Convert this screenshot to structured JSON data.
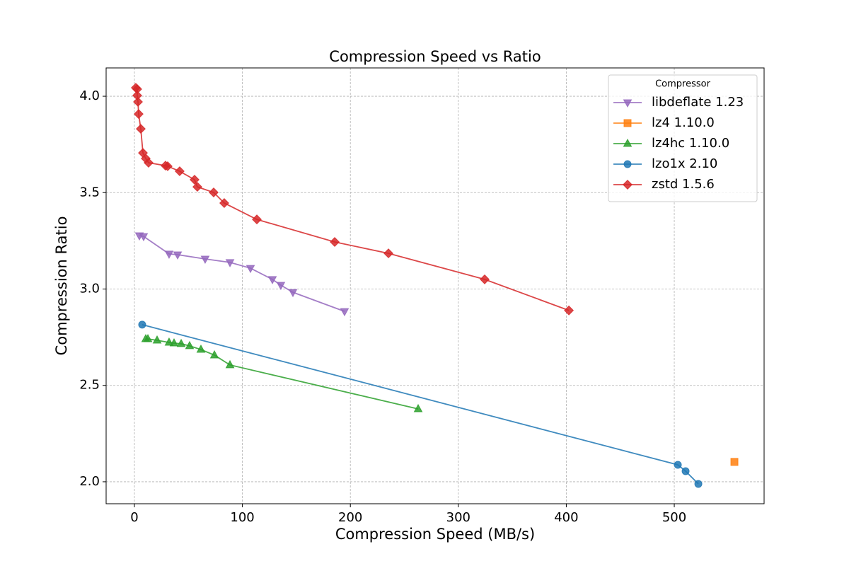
{
  "chart_data": {
    "type": "line",
    "title": "Compression Speed vs Ratio",
    "xlabel": "Compression Speed (MB/s)",
    "ylabel": "Compression Ratio",
    "xlim": [
      -26.2,
      583.2
    ],
    "ylim": [
      1.886,
      4.147
    ],
    "xticks": [
      0,
      100,
      200,
      300,
      400,
      500
    ],
    "yticks": [
      {
        "value": 2,
        "label": "2.0"
      },
      2.5,
      {
        "value": 3,
        "label": "3.0"
      },
      3.5,
      {
        "value": 4,
        "label": "4.0"
      }
    ],
    "grid": true,
    "legend_title": "Compressor",
    "legend_position": "upper-right",
    "series": [
      {
        "name": "libdeflate 1.23",
        "color": "#9467bd",
        "marker": "v",
        "x": [
          4.6,
          8.5,
          32.1,
          40.0,
          65.5,
          88.5,
          107.5,
          127.8,
          135.6,
          146.8,
          194.6
        ],
        "values": [
          3.277,
          3.273,
          3.182,
          3.178,
          3.156,
          3.138,
          3.108,
          3.05,
          3.02,
          2.983,
          2.884
        ]
      },
      {
        "name": "lz4 1.10.0",
        "color": "#ff7f0e",
        "marker": "s",
        "x": [
          555.7
        ],
        "values": [
          2.103
        ]
      },
      {
        "name": "lz4hc 1.10.0",
        "color": "#2ca02c",
        "marker": "^",
        "x": [
          10.5,
          12.5,
          21.0,
          32.1,
          36.7,
          43.3,
          51.1,
          61.6,
          74.1,
          88.5,
          262.8
        ],
        "values": [
          2.741,
          2.741,
          2.734,
          2.723,
          2.719,
          2.716,
          2.705,
          2.686,
          2.657,
          2.606,
          2.378
        ]
      },
      {
        "name": "lzo1x 2.10",
        "color": "#1f77b4",
        "marker": "o",
        "x": [
          7.2,
          503.3,
          510.5,
          522.3
        ],
        "values": [
          2.815,
          2.088,
          2.055,
          1.989
        ]
      },
      {
        "name": "zstd 1.5.6",
        "color": "#d62728",
        "marker": "D",
        "x": [
          1.3,
          2.6,
          2.6,
          3.3,
          3.9,
          5.9,
          7.9,
          10.5,
          13.1,
          28.8,
          30.8,
          41.9,
          55.7,
          58.3,
          73.4,
          83.2,
          113.4,
          185.5,
          235.3,
          324.4,
          402.4
        ],
        "values": [
          4.044,
          4.037,
          4.004,
          3.971,
          3.908,
          3.831,
          3.706,
          3.677,
          3.655,
          3.64,
          3.637,
          3.611,
          3.567,
          3.53,
          3.501,
          3.446,
          3.361,
          3.244,
          3.185,
          3.05,
          2.889
        ]
      }
    ]
  }
}
